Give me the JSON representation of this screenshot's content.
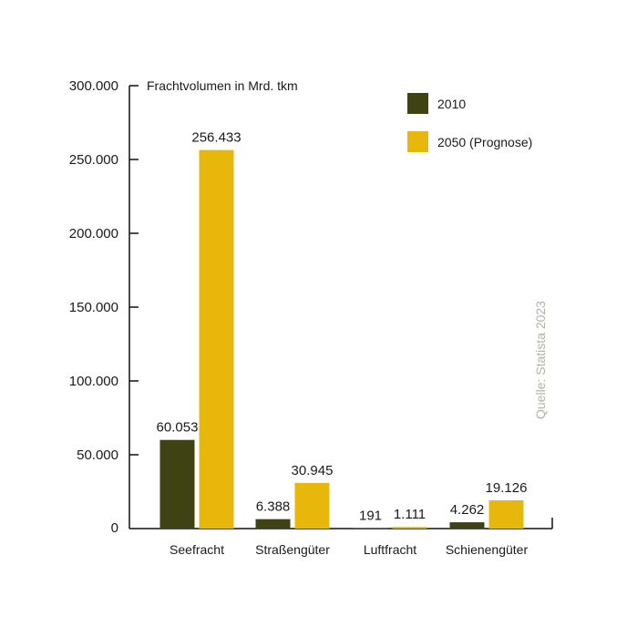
{
  "chart_data": {
    "type": "bar",
    "ylabel": "Frachtvolumen in Mrd. tkm",
    "categories": [
      "Seefracht",
      "Straßengüter",
      "Luftfracht",
      "Schienengüter"
    ],
    "series": [
      {
        "name": "2010",
        "color": "#3f4314",
        "values": [
          60053,
          6388,
          191,
          4262
        ],
        "labels": [
          "60.053",
          "6.388",
          "191",
          "4.262"
        ]
      },
      {
        "name": "2050 (Prognose)",
        "color": "#e8b70c",
        "values": [
          256433,
          30945,
          1111,
          19126
        ],
        "labels": [
          "256.433",
          "30.945",
          "1.111",
          "19.126"
        ]
      }
    ],
    "ylim": [
      0,
      300000
    ],
    "yticks": [
      0,
      50000,
      100000,
      150000,
      200000,
      250000,
      300000
    ],
    "ytick_labels": [
      "0",
      "50.000",
      "100.000",
      "150.000",
      "200.000",
      "250.000",
      "300.000"
    ],
    "legend_position": "top-right",
    "source": "Quelle: Statista 2023"
  }
}
